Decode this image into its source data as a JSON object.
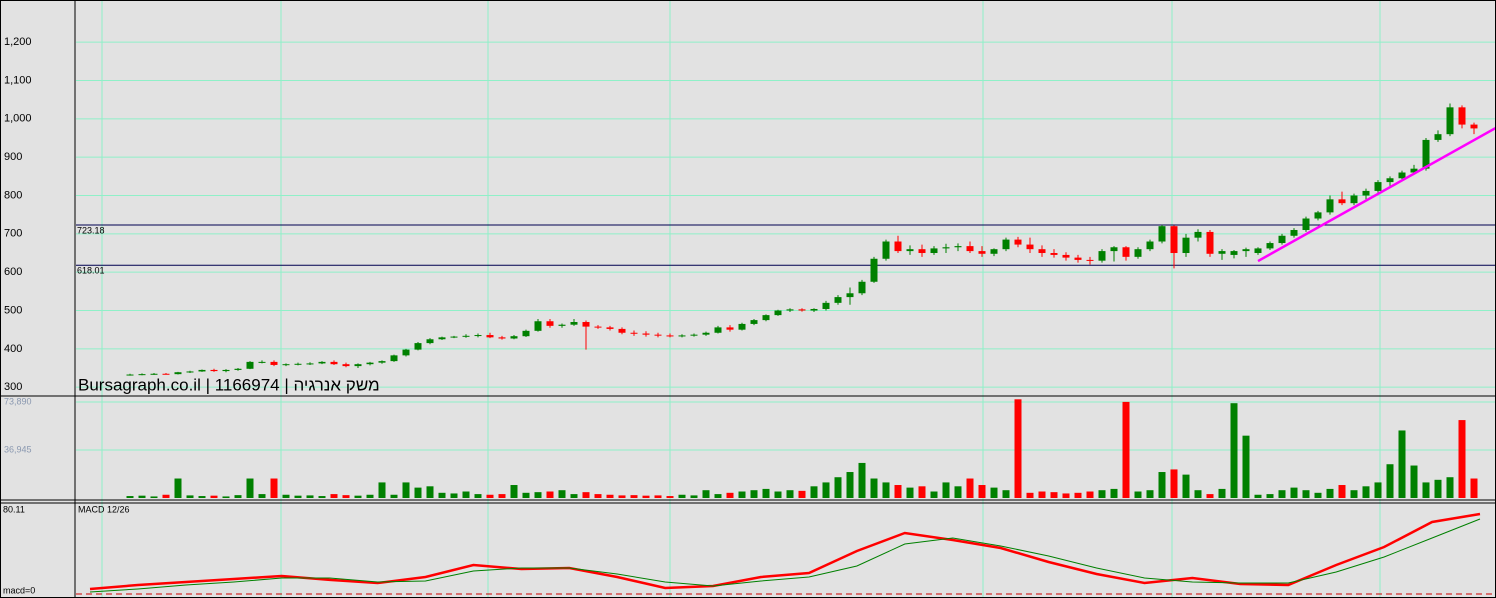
{
  "chart_data": [
    {
      "type": "candlestick",
      "ohlc": [
        [
          332,
          335,
          330,
          333
        ],
        [
          333,
          336,
          331,
          334
        ],
        [
          334,
          337,
          332,
          335
        ],
        [
          335,
          337,
          333,
          334
        ],
        [
          334,
          340,
          333,
          339
        ],
        [
          339,
          343,
          337,
          341
        ],
        [
          341,
          346,
          340,
          345
        ],
        [
          345,
          348,
          340,
          342
        ],
        [
          342,
          347,
          339,
          345
        ],
        [
          345,
          350,
          343,
          348
        ],
        [
          348,
          368,
          347,
          366
        ],
        [
          366,
          370,
          362,
          366
        ],
        [
          366,
          370,
          355,
          358
        ],
        [
          358,
          362,
          355,
          360
        ],
        [
          360,
          364,
          357,
          361
        ],
        [
          361,
          365,
          358,
          362
        ],
        [
          362,
          368,
          360,
          366
        ],
        [
          366,
          370,
          358,
          360
        ],
        [
          360,
          364,
          352,
          355
        ],
        [
          355,
          362,
          350,
          360
        ],
        [
          360,
          366,
          357,
          364
        ],
        [
          364,
          370,
          361,
          368
        ],
        [
          368,
          385,
          366,
          383
        ],
        [
          383,
          400,
          380,
          398
        ],
        [
          398,
          418,
          396,
          415
        ],
        [
          415,
          428,
          412,
          425
        ],
        [
          425,
          432,
          423,
          430
        ],
        [
          430,
          434,
          428,
          432
        ],
        [
          432,
          438,
          429,
          434
        ],
        [
          434,
          440,
          430,
          436
        ],
        [
          436,
          442,
          428,
          430
        ],
        [
          430,
          434,
          424,
          427
        ],
        [
          427,
          436,
          425,
          433
        ],
        [
          433,
          450,
          431,
          447
        ],
        [
          447,
          478,
          445,
          472
        ],
        [
          472,
          478,
          455,
          460
        ],
        [
          460,
          466,
          455,
          463
        ],
        [
          463,
          478,
          460,
          470
        ],
        [
          470,
          474,
          398,
          458
        ],
        [
          458,
          462,
          452,
          456
        ],
        [
          456,
          460,
          448,
          452
        ],
        [
          452,
          456,
          438,
          442
        ],
        [
          442,
          448,
          434,
          440
        ],
        [
          440,
          446,
          432,
          437
        ],
        [
          437,
          442,
          430,
          435
        ],
        [
          435,
          440,
          430,
          433
        ],
        [
          433,
          438,
          430,
          435
        ],
        [
          435,
          440,
          432,
          437
        ],
        [
          437,
          445,
          434,
          442
        ],
        [
          442,
          460,
          440,
          456
        ],
        [
          456,
          462,
          445,
          450
        ],
        [
          450,
          468,
          448,
          465
        ],
        [
          465,
          478,
          462,
          475
        ],
        [
          475,
          490,
          472,
          488
        ],
        [
          488,
          502,
          486,
          500
        ],
        [
          500,
          506,
          496,
          503
        ],
        [
          503,
          506,
          497,
          500
        ],
        [
          500,
          506,
          496,
          504
        ],
        [
          504,
          525,
          500,
          520
        ],
        [
          520,
          540,
          515,
          535
        ],
        [
          535,
          560,
          515,
          545
        ],
        [
          545,
          580,
          540,
          575
        ],
        [
          575,
          640,
          572,
          635
        ],
        [
          635,
          685,
          630,
          680
        ],
        [
          680,
          695,
          650,
          655
        ],
        [
          655,
          670,
          645,
          660
        ],
        [
          660,
          672,
          640,
          650
        ],
        [
          650,
          668,
          645,
          662
        ],
        [
          662,
          674,
          650,
          665
        ],
        [
          665,
          675,
          655,
          668
        ],
        [
          668,
          680,
          650,
          655
        ],
        [
          655,
          668,
          640,
          648
        ],
        [
          648,
          662,
          642,
          660
        ],
        [
          660,
          690,
          655,
          685
        ],
        [
          685,
          692,
          665,
          672
        ],
        [
          672,
          690,
          650,
          660
        ],
        [
          660,
          670,
          640,
          650
        ],
        [
          650,
          660,
          638,
          645
        ],
        [
          645,
          652,
          630,
          638
        ],
        [
          638,
          645,
          625,
          632
        ],
        [
          632,
          640,
          620,
          630
        ],
        [
          630,
          660,
          625,
          655
        ],
        [
          655,
          668,
          628,
          665
        ],
        [
          665,
          668,
          630,
          640
        ],
        [
          640,
          665,
          635,
          660
        ],
        [
          660,
          685,
          655,
          680
        ],
        [
          680,
          723,
          675,
          720
        ],
        [
          720,
          722,
          610,
          650
        ],
        [
          650,
          700,
          640,
          690
        ],
        [
          690,
          712,
          680,
          705
        ],
        [
          705,
          710,
          640,
          648
        ],
        [
          648,
          660,
          632,
          655
        ],
        [
          645,
          658,
          636,
          655
        ],
        [
          655,
          664,
          640,
          660
        ],
        [
          650,
          665,
          645,
          662
        ],
        [
          662,
          680,
          658,
          676
        ],
        [
          676,
          700,
          672,
          695
        ],
        [
          695,
          715,
          690,
          710
        ],
        [
          710,
          745,
          705,
          740
        ],
        [
          740,
          760,
          735,
          756
        ],
        [
          756,
          800,
          750,
          790
        ],
        [
          790,
          810,
          775,
          780
        ],
        [
          780,
          805,
          775,
          800
        ],
        [
          800,
          818,
          790,
          812
        ],
        [
          812,
          840,
          808,
          835
        ],
        [
          835,
          850,
          825,
          845
        ],
        [
          845,
          865,
          840,
          860
        ],
        [
          860,
          880,
          855,
          870
        ],
        [
          870,
          950,
          865,
          945
        ],
        [
          945,
          970,
          940,
          960
        ],
        [
          960,
          1040,
          955,
          1030
        ],
        [
          1030,
          1035,
          975,
          985
        ],
        [
          985,
          990,
          960,
          975
        ]
      ],
      "up_color": "#008000",
      "down_color": "#ff0000",
      "ylim": [
        277,
        1310
      ],
      "yticks": [
        300,
        400,
        500,
        600,
        700,
        800,
        900,
        {
          "value": 1000,
          "label": "1,000"
        },
        {
          "value": 1100,
          "label": "1,100"
        },
        {
          "value": 1200,
          "label": "1,200"
        }
      ],
      "grid": true,
      "levels": [
        723.18,
        618.01
      ],
      "trendline": {
        "color": "#ff00ff",
        "x": [
          94,
          113.8
        ],
        "y": [
          629,
          976
        ]
      },
      "watermark": "Bursagraph.co.il | 1166974 | משק אנרגיה"
    },
    {
      "type": "bar",
      "values": [
        1500,
        1800,
        1200,
        2500,
        15000,
        2000,
        1500,
        1800,
        1200,
        2200,
        15000,
        3000,
        15000,
        2500,
        1800,
        2000,
        1500,
        3000,
        2200,
        1800,
        2500,
        12000,
        2500,
        12000,
        8000,
        9000,
        4000,
        3500,
        5000,
        3000,
        2500,
        3000,
        10000,
        4000,
        4500,
        5000,
        6000,
        3000,
        4500,
        3000,
        2500,
        2000,
        2200,
        1800,
        2000,
        1500,
        2500,
        2000,
        6000,
        3000,
        4000,
        5000,
        6000,
        7000,
        5000,
        6000,
        5500,
        9000,
        12000,
        16000,
        20000,
        27000,
        15000,
        12000,
        10000,
        8000,
        9000,
        5000,
        12000,
        9000,
        15000,
        10000,
        8000,
        6000,
        76000,
        4000,
        5000,
        4500,
        3500,
        4000,
        5000,
        6000,
        7000,
        74000,
        5000,
        6000,
        20000,
        22000,
        18000,
        6000,
        3000,
        7000,
        73000,
        48000,
        2500,
        3000,
        6000,
        8000,
        6000,
        4000,
        7000,
        10000,
        6000,
        9000,
        12000,
        26000,
        52000,
        25000,
        12000,
        14000,
        16000,
        60000,
        15000
      ],
      "ylim": [
        0,
        77000
      ],
      "yticks": [
        {
          "value": 36945,
          "label": "36,945"
        },
        {
          "value": 73890,
          "label": "73,890"
        }
      ],
      "grid": true
    },
    {
      "type": "line",
      "title": "MACD 12/26",
      "series": [
        {
          "color": "#ff0000",
          "values": [
            4.8,
            8.6,
            11.4,
            14.3,
            17.2,
            13.4,
            10.5,
            16.2,
            27.7,
            23.8,
            24.8,
            16.2,
            5.7,
            7.6,
            16.2,
            20.0,
            41.0,
            58.2,
            51.5,
            43.9,
            30.5,
            19.1,
            10.5,
            15.3,
            9.5,
            8.6,
            27.7,
            44.8,
            68.7,
            76.3
          ]
        },
        {
          "color": "#008000",
          "values": [
            1.9,
            4.8,
            8.6,
            11.4,
            15.3,
            15.3,
            11.4,
            12.4,
            21.9,
            24.8,
            24.8,
            19.1,
            11.4,
            7.6,
            12.4,
            16.2,
            26.7,
            47.7,
            53.4,
            45.8,
            36.2,
            24.8,
            15.3,
            11.4,
            10.5,
            10.5,
            21.0,
            35.3,
            53.4,
            71.5
          ]
        }
      ],
      "ylim": [
        0,
        80.11
      ],
      "yticks": [
        {
          "value": 0,
          "label": "macd=0"
        },
        80.11
      ]
    }
  ]
}
